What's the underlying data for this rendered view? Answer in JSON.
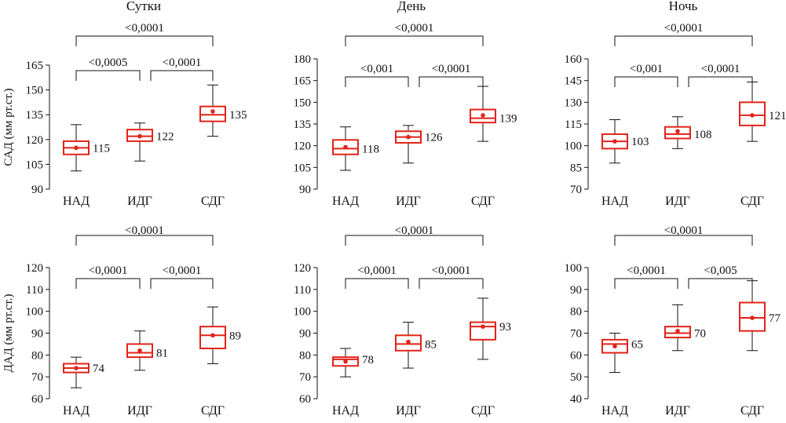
{
  "columns": [
    "Сутки",
    "День",
    "Ночь"
  ],
  "rows": [
    "САД (мм рт.ст.)",
    "ДАД (мм рт.ст.)"
  ],
  "chart_data": [
    {
      "type": "box",
      "title": "Сутки",
      "ylabel": "САД (мм рт.ст.)",
      "ylim": [
        90,
        165
      ],
      "yticks": [
        90,
        105,
        120,
        135,
        150,
        165
      ],
      "categories": [
        "НАД",
        "ИДГ",
        "СДГ"
      ],
      "boxes": [
        {
          "min": 101,
          "q1": 111,
          "median": 115,
          "mean": 115,
          "q3": 119,
          "max": 129,
          "label": "115"
        },
        {
          "min": 107,
          "q1": 119,
          "median": 122,
          "mean": 122,
          "q3": 126,
          "max": 130,
          "label": "122"
        },
        {
          "min": 122,
          "q1": 131,
          "median": 135,
          "mean": 137,
          "q3": 140,
          "max": 153,
          "label": "135"
        }
      ],
      "comparisons": [
        {
          "from": 0,
          "to": 1,
          "level": 0,
          "label": "<0,0005"
        },
        {
          "from": 1,
          "to": 2,
          "level": 0,
          "label": "<0,0001"
        },
        {
          "from": 0,
          "to": 2,
          "level": 1,
          "label": "<0,0001"
        }
      ]
    },
    {
      "type": "box",
      "title": "День",
      "ylabel": "",
      "ylim": [
        90,
        180
      ],
      "yticks": [
        90,
        105,
        120,
        135,
        150,
        165,
        180
      ],
      "categories": [
        "НАД",
        "ИДГ",
        "СДГ"
      ],
      "boxes": [
        {
          "min": 103,
          "q1": 114,
          "median": 118,
          "mean": 119,
          "q3": 124,
          "max": 133,
          "label": "118"
        },
        {
          "min": 108,
          "q1": 122,
          "median": 126,
          "mean": 126,
          "q3": 130,
          "max": 134,
          "label": "126"
        },
        {
          "min": 123,
          "q1": 136,
          "median": 139,
          "mean": 141,
          "q3": 145,
          "max": 161,
          "label": "139"
        }
      ],
      "comparisons": [
        {
          "from": 0,
          "to": 1,
          "level": 0,
          "label": "<0,001"
        },
        {
          "from": 1,
          "to": 2,
          "level": 0,
          "label": "<0,0001"
        },
        {
          "from": 0,
          "to": 2,
          "level": 1,
          "label": "<0,0001"
        }
      ]
    },
    {
      "type": "box",
      "title": "Ночь",
      "ylabel": "",
      "ylim": [
        70,
        160
      ],
      "yticks": [
        70,
        85,
        100,
        115,
        130,
        145,
        160
      ],
      "categories": [
        "НАД",
        "ИДГ",
        "СДГ"
      ],
      "boxes": [
        {
          "min": 88,
          "q1": 98,
          "median": 103,
          "mean": 103,
          "q3": 108,
          "max": 118,
          "label": "103"
        },
        {
          "min": 98,
          "q1": 105,
          "median": 108,
          "mean": 110,
          "q3": 113,
          "max": 120,
          "label": "108"
        },
        {
          "min": 103,
          "q1": 114,
          "median": 121,
          "mean": 121,
          "q3": 130,
          "max": 144,
          "label": "121"
        }
      ],
      "comparisons": [
        {
          "from": 0,
          "to": 1,
          "level": 0,
          "label": "<0,001"
        },
        {
          "from": 1,
          "to": 2,
          "level": 0,
          "label": "<0,0001"
        },
        {
          "from": 0,
          "to": 2,
          "level": 1,
          "label": "<0,0001"
        }
      ]
    },
    {
      "type": "box",
      "title": "",
      "ylabel": "ДАД (мм рт.ст.)",
      "ylim": [
        60,
        120
      ],
      "yticks": [
        60,
        70,
        80,
        90,
        100,
        110,
        120
      ],
      "categories": [
        "НАД",
        "ИДГ",
        "СДГ"
      ],
      "boxes": [
        {
          "min": 65,
          "q1": 72,
          "median": 74,
          "mean": 74,
          "q3": 76,
          "max": 79,
          "label": "74"
        },
        {
          "min": 73,
          "q1": 79,
          "median": 81,
          "mean": 82,
          "q3": 85,
          "max": 91,
          "label": "81"
        },
        {
          "min": 76,
          "q1": 83,
          "median": 89,
          "mean": 89,
          "q3": 93,
          "max": 102,
          "label": "89"
        }
      ],
      "comparisons": [
        {
          "from": 0,
          "to": 1,
          "level": 0,
          "label": "<0,0001"
        },
        {
          "from": 1,
          "to": 2,
          "level": 0,
          "label": "<0,0001"
        },
        {
          "from": 0,
          "to": 2,
          "level": 1,
          "label": "<0,0001"
        }
      ]
    },
    {
      "type": "box",
      "title": "",
      "ylabel": "",
      "ylim": [
        60,
        120
      ],
      "yticks": [
        60,
        70,
        80,
        90,
        100,
        110,
        120
      ],
      "categories": [
        "НАД",
        "ИДГ",
        "СДГ"
      ],
      "boxes": [
        {
          "min": 70,
          "q1": 75,
          "median": 78,
          "mean": 77,
          "q3": 79,
          "max": 83,
          "label": "78"
        },
        {
          "min": 74,
          "q1": 82,
          "median": 85,
          "mean": 86,
          "q3": 89,
          "max": 95,
          "label": "85"
        },
        {
          "min": 78,
          "q1": 87,
          "median": 93,
          "mean": 93,
          "q3": 95,
          "max": 106,
          "label": "93"
        }
      ],
      "comparisons": [
        {
          "from": 0,
          "to": 1,
          "level": 0,
          "label": "<0,0001"
        },
        {
          "from": 1,
          "to": 2,
          "level": 0,
          "label": "<0,0001"
        },
        {
          "from": 0,
          "to": 2,
          "level": 1,
          "label": "<0,0001"
        }
      ]
    },
    {
      "type": "box",
      "title": "",
      "ylabel": "",
      "ylim": [
        40,
        100
      ],
      "yticks": [
        40,
        50,
        60,
        70,
        80,
        90,
        100
      ],
      "categories": [
        "НАД",
        "ИДГ",
        "СДГ"
      ],
      "boxes": [
        {
          "min": 52,
          "q1": 61,
          "median": 65,
          "mean": 64,
          "q3": 67,
          "max": 70,
          "label": "65"
        },
        {
          "min": 62,
          "q1": 68,
          "median": 70,
          "mean": 71,
          "q3": 73,
          "max": 83,
          "label": "70"
        },
        {
          "min": 62,
          "q1": 71,
          "median": 77,
          "mean": 77,
          "q3": 84,
          "max": 94,
          "label": "77"
        }
      ],
      "comparisons": [
        {
          "from": 0,
          "to": 1,
          "level": 0,
          "label": "<0,0001"
        },
        {
          "from": 1,
          "to": 2,
          "level": 0,
          "label": "<0,005"
        },
        {
          "from": 0,
          "to": 2,
          "level": 1,
          "label": "<0,0001"
        }
      ]
    }
  ],
  "colors": {
    "box": "#e2231a",
    "axis": "#111111",
    "text": "#111111"
  }
}
